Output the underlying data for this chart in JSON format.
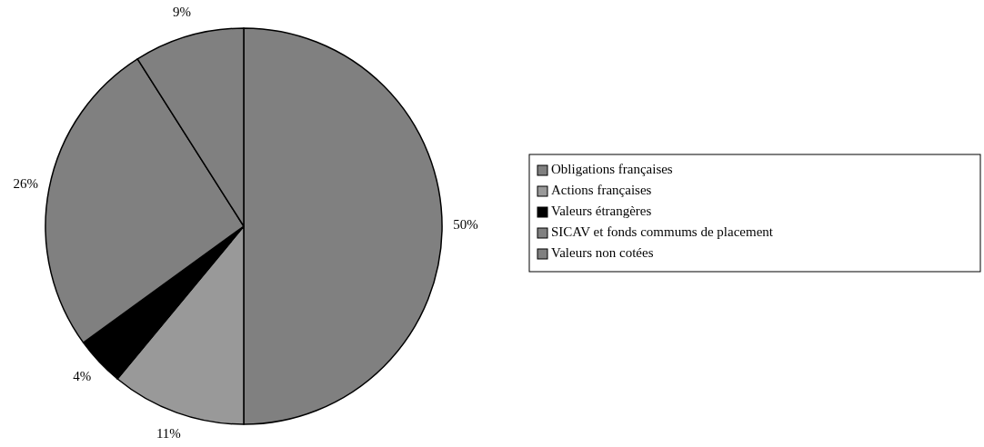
{
  "chart_data": {
    "type": "pie",
    "categories": [
      "Obligations françaises",
      "Actions françaises",
      "Valeurs étrangères",
      "SICAV et fonds commums de placement",
      "Valeurs non cotées"
    ],
    "values": [
      50,
      11,
      4,
      26,
      9
    ],
    "colors": [
      "#808080",
      "#999999",
      "#000000",
      "#808080",
      "#808080"
    ],
    "value_labels": [
      "50%",
      "11%",
      "4%",
      "26%",
      "9%"
    ],
    "legend": "right"
  }
}
